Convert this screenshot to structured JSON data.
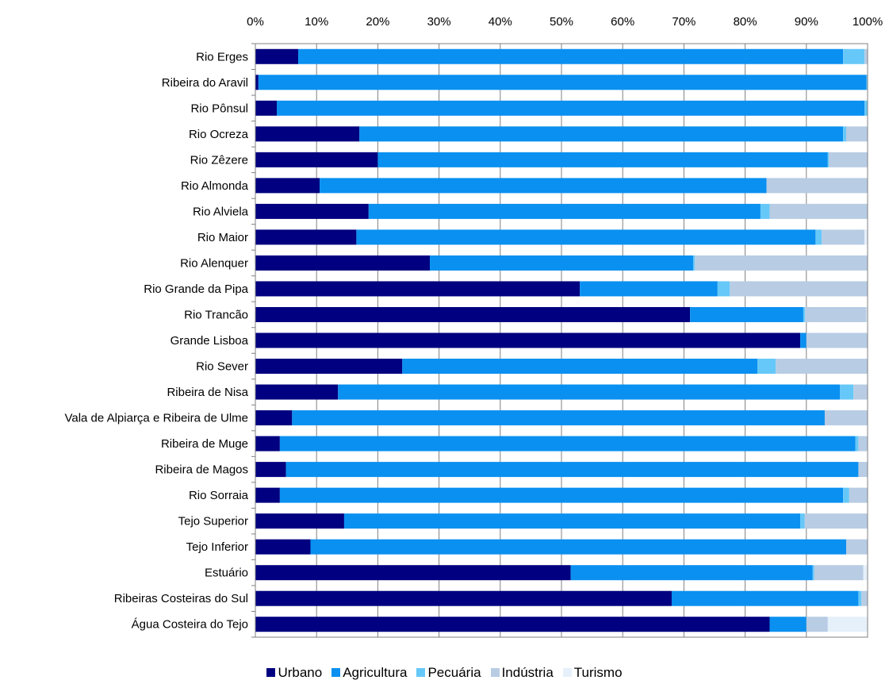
{
  "chart_data": {
    "type": "bar",
    "orientation": "horizontal",
    "stacked": true,
    "percent": true,
    "xlim": [
      0,
      100
    ],
    "x_ticks": [
      "0%",
      "10%",
      "20%",
      "30%",
      "40%",
      "50%",
      "60%",
      "70%",
      "80%",
      "90%",
      "100%"
    ],
    "x_axis_position": "top",
    "grid": true,
    "legend_position": "bottom",
    "categories": [
      "Rio Erges",
      "Ribeira do Aravil",
      "Rio Pônsul",
      "Rio Ocreza",
      "Rio Zêzere",
      "Rio Almonda",
      "Rio Alviela",
      "Rio Maior",
      "Rio Alenquer",
      "Rio Grande da Pipa",
      "Rio Trancão",
      "Grande Lisboa",
      "Rio Sever",
      "Ribeira de Nisa",
      "Vala de Alpiarça e Ribeira de Ulme",
      "Ribeira de Muge",
      "Ribeira de Magos",
      "Rio Sorraia",
      "Tejo Superior",
      "Tejo Inferior",
      "Estuário",
      "Ribeiras Costeiras do Sul",
      "Água Costeira do Tejo"
    ],
    "series": [
      {
        "name": "Urbano",
        "color": "#000080",
        "values": [
          7,
          0.5,
          3.5,
          17,
          20,
          10.5,
          18.5,
          16.5,
          28.5,
          53,
          71,
          89,
          24,
          13.5,
          6,
          4,
          5,
          4,
          14.5,
          9,
          51.5,
          68,
          84
        ]
      },
      {
        "name": "Agricultura",
        "color": "#0A90F0",
        "values": [
          89,
          99.3,
          96,
          79,
          73.5,
          73,
          64,
          75,
          43,
          22.5,
          18.5,
          1,
          58,
          82,
          87,
          94,
          93.5,
          92,
          74.5,
          87.5,
          39.5,
          30.5,
          6
        ]
      },
      {
        "name": "Pecuária",
        "color": "#66C8F8",
        "values": [
          3.5,
          0.2,
          0.5,
          0.5,
          0.2,
          0,
          1.5,
          1,
          0.3,
          2,
          0.3,
          0,
          3,
          2.2,
          0,
          0.5,
          0,
          1,
          0.7,
          0,
          0.3,
          0.5,
          0
        ]
      },
      {
        "name": "Indústria",
        "color": "#B8CCE4",
        "values": [
          0.5,
          0,
          0,
          3.5,
          6.3,
          16.5,
          16,
          7,
          28.2,
          22.5,
          10,
          10,
          15,
          2.3,
          7,
          1.5,
          1.5,
          3,
          10.3,
          3.5,
          8,
          1,
          3.5
        ]
      },
      {
        "name": "Turismo",
        "color": "#E6F0FA",
        "values": [
          0,
          0,
          0,
          0,
          0,
          0,
          0,
          0.5,
          0,
          0,
          0.2,
          0,
          0,
          0,
          0,
          0,
          0,
          0,
          0,
          0,
          0.7,
          0,
          6.5
        ]
      }
    ]
  }
}
